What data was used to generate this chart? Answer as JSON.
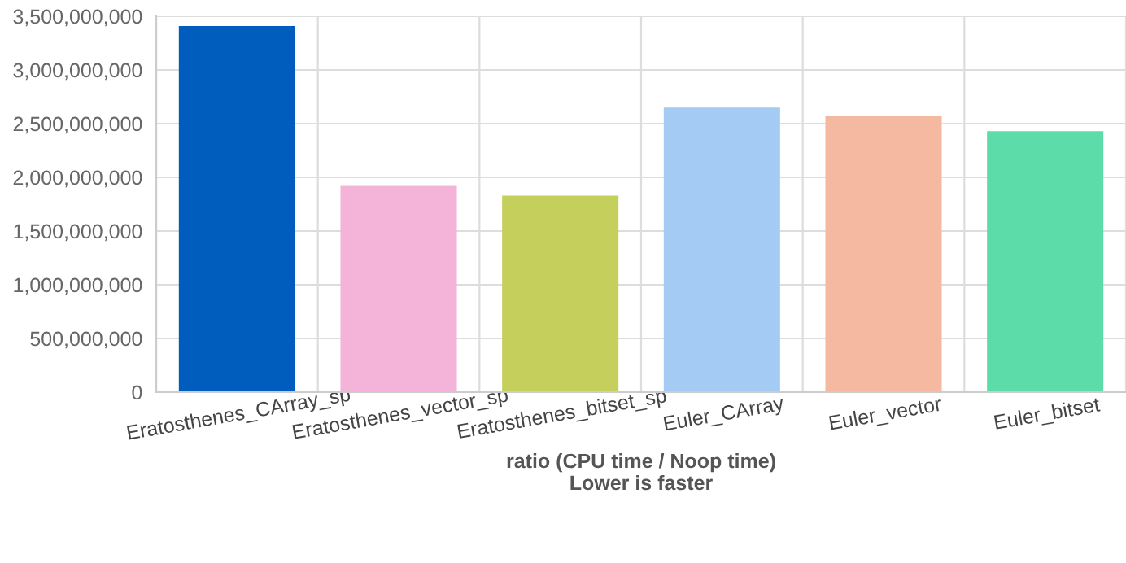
{
  "chart_data": {
    "type": "bar",
    "categories": [
      "Eratosthenes_CArray_sp",
      "Eratosthenes_vector_sp",
      "Eratosthenes_bitset_sp",
      "Euler_CArray",
      "Euler_vector",
      "Euler_bitset"
    ],
    "values": [
      3410000000,
      1920000000,
      1830000000,
      2650000000,
      2570000000,
      2430000000
    ],
    "colors": [
      "#005cbd",
      "#f4b3d9",
      "#c5cf5b",
      "#a3cbf4",
      "#f5b9a2",
      "#5cdca9"
    ],
    "xlabel": "ratio (CPU time / Noop time)\nLower is faster",
    "ylim": [
      0,
      3500000000
    ],
    "yticks": [
      {
        "value": 0,
        "label": "0"
      },
      {
        "value": 500000000,
        "label": "500,000,000"
      },
      {
        "value": 1000000000,
        "label": "1,000,000,000"
      },
      {
        "value": 1500000000,
        "label": "1,500,000,000"
      },
      {
        "value": 2000000000,
        "label": "2,000,000,000"
      },
      {
        "value": 2500000000,
        "label": "2,500,000,000"
      },
      {
        "value": 3000000000,
        "label": "3,000,000,000"
      },
      {
        "value": 3500000000,
        "label": "3,500,000,000"
      }
    ],
    "grid": true
  }
}
